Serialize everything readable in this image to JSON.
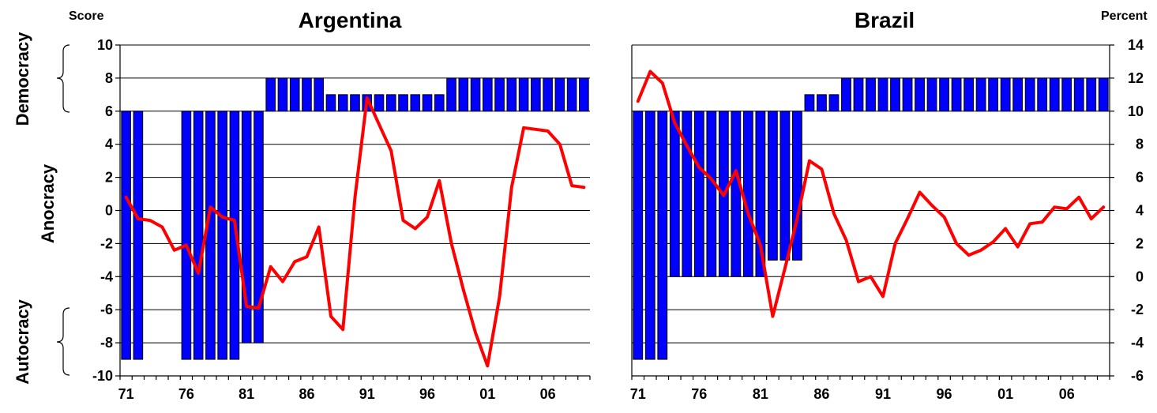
{
  "chart_data": [
    {
      "type": "bar+line",
      "title": "Argentina",
      "ylabel": "Score",
      "ylim": [
        -10,
        10
      ],
      "yticks": [
        -10,
        -8,
        -6,
        -4,
        -2,
        0,
        2,
        4,
        6,
        8,
        10
      ],
      "xticks": [
        "71",
        "76",
        "81",
        "86",
        "91",
        "96",
        "01",
        "06"
      ],
      "bar_baseline": 6,
      "years": [
        1971,
        1972,
        1973,
        1974,
        1975,
        1976,
        1977,
        1978,
        1979,
        1980,
        1981,
        1982,
        1983,
        1984,
        1985,
        1986,
        1987,
        1988,
        1989,
        1990,
        1991,
        1992,
        1993,
        1994,
        1995,
        1996,
        1997,
        1998,
        1999,
        2000,
        2001,
        2002,
        2003,
        2004,
        2005,
        2006,
        2007,
        2008,
        2009
      ],
      "bars": [
        -9,
        -9,
        null,
        null,
        null,
        -9,
        -9,
        -9,
        -9,
        -9,
        -8,
        -8,
        8,
        8,
        8,
        8,
        8,
        7,
        7,
        7,
        7,
        7,
        7,
        7,
        7,
        7,
        7,
        8,
        8,
        8,
        8,
        8,
        8,
        8,
        8,
        8,
        8,
        8,
        8
      ],
      "line_ylim": [
        -6,
        14
      ],
      "line": [
        4.8,
        3.5,
        3.4,
        3.0,
        1.6,
        1.9,
        0.2,
        4.2,
        3.6,
        3.4,
        -1.8,
        -1.9,
        0.6,
        -0.3,
        0.9,
        1.2,
        3.0,
        -2.4,
        -3.2,
        4.8,
        10.8,
        9.2,
        7.6,
        3.4,
        2.9,
        3.6,
        5.8,
        2.0,
        -0.8,
        -3.4,
        -5.4,
        -1.2,
        5.4,
        9.0,
        8.9,
        8.8,
        8.0,
        5.5,
        5.4
      ]
    },
    {
      "type": "bar+line",
      "title": "Brazil",
      "ylabel": "Percent",
      "y2lim": [
        -6,
        14
      ],
      "y2ticks": [
        -6,
        -4,
        -2,
        0,
        2,
        4,
        6,
        8,
        10,
        12,
        14
      ],
      "xticks": [
        "71",
        "76",
        "81",
        "86",
        "91",
        "96",
        "01",
        "06"
      ],
      "bar_baseline": 6,
      "years": [
        1971,
        1972,
        1973,
        1974,
        1975,
        1976,
        1977,
        1978,
        1979,
        1980,
        1981,
        1982,
        1983,
        1984,
        1985,
        1986,
        1987,
        1988,
        1989,
        1990,
        1991,
        1992,
        1993,
        1994,
        1995,
        1996,
        1997,
        1998,
        1999,
        2000,
        2001,
        2002,
        2003,
        2004,
        2005,
        2006,
        2007,
        2008,
        2009
      ],
      "bars": [
        -9,
        -9,
        -9,
        -4,
        -4,
        -4,
        -4,
        -4,
        -4,
        -4,
        -4,
        -3,
        -3,
        -3,
        7,
        7,
        7,
        8,
        8,
        8,
        8,
        8,
        8,
        8,
        8,
        8,
        8,
        8,
        8,
        8,
        8,
        8,
        8,
        8,
        8,
        8,
        8,
        8,
        8
      ],
      "line_ylim": [
        -6,
        14
      ],
      "line": [
        10.6,
        12.4,
        11.7,
        9.3,
        7.9,
        6.6,
        5.9,
        4.9,
        6.4,
        3.8,
        1.9,
        -2.4,
        0.5,
        3.5,
        7.0,
        6.5,
        3.8,
        2.2,
        -0.3,
        0.0,
        -1.2,
        2.0,
        3.5,
        5.1,
        4.3,
        3.6,
        2.0,
        1.3,
        1.6,
        2.1,
        2.9,
        1.8,
        3.2,
        3.3,
        4.2,
        4.1,
        4.8,
        3.5,
        4.2
      ]
    }
  ],
  "left_axis": {
    "label": "Score",
    "ticks": [
      "10",
      "8",
      "6",
      "4",
      "2",
      "0",
      "-2",
      "-4",
      "-6",
      "-8",
      "-10"
    ]
  },
  "right_axis": {
    "label": "Percent",
    "ticks": [
      "14",
      "12",
      "10",
      "8",
      "6",
      "4",
      "2",
      "0",
      "-2",
      "-4",
      "-6"
    ]
  },
  "regimes": {
    "democracy": "Democracy",
    "anocracy": "Anocracy",
    "autocracy": "Autocracy"
  },
  "colors": {
    "bars": "#0000ff",
    "line": "#ff0000"
  }
}
